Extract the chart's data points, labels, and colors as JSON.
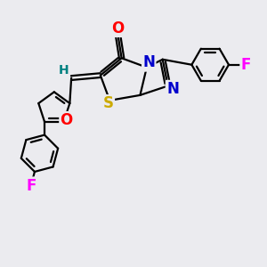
{
  "background_color": "#ebebef",
  "bond_color": "#000000",
  "bond_width": 1.6,
  "atom_colors": {
    "O": "#ff0000",
    "N": "#0000cc",
    "S": "#ccaa00",
    "F": "#ff00ff",
    "H": "#008080",
    "C": "#000000"
  },
  "font_size_atoms": 12,
  "font_size_H": 10,
  "figsize": [
    3.0,
    3.0
  ],
  "dpi": 100
}
